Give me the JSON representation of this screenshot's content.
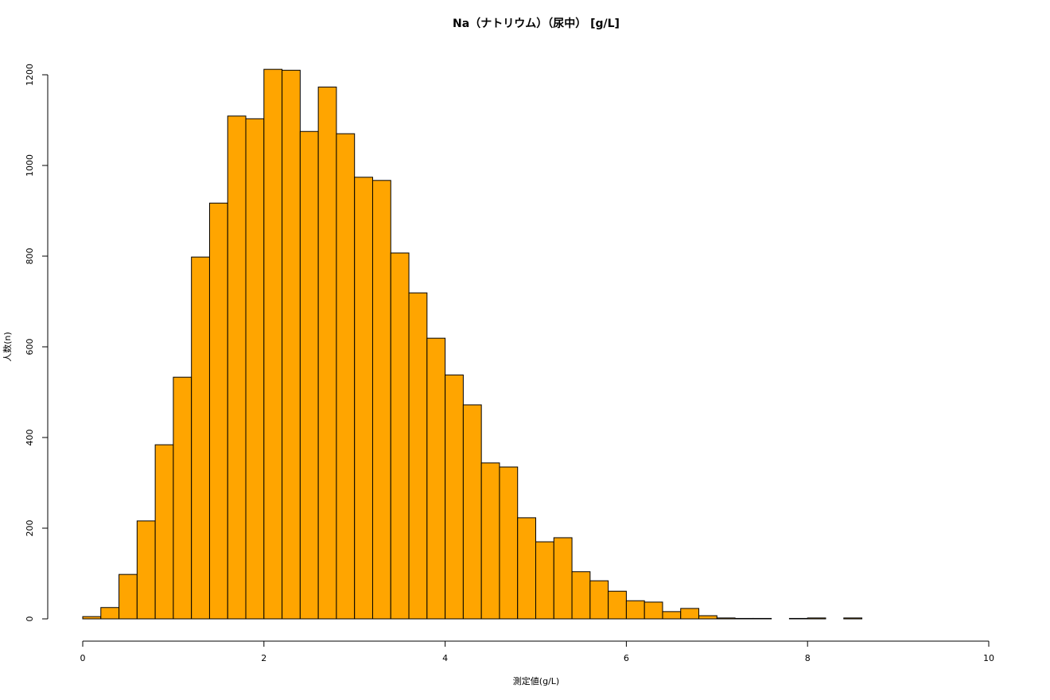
{
  "chart_data": {
    "type": "histogram",
    "title": "Na（ナトリウム）（尿中） [g/L]",
    "x_label": "測定値(g/L)",
    "y_label": "人数(n)",
    "bins": [
      0,
      0.2,
      0.4,
      0.6,
      0.8,
      1,
      1.2,
      1.4,
      1.6,
      1.8,
      2,
      2.2,
      2.4,
      2.6,
      2.8,
      3,
      3.2,
      3.4,
      3.6,
      3.8,
      4,
      4.2,
      4.4,
      4.6,
      4.8,
      5,
      5.2,
      5.4,
      5.6,
      5.8,
      6,
      6.2,
      6.4,
      6.6,
      6.8,
      7,
      7.2,
      7.4,
      7.6,
      7.8,
      8,
      8.2,
      8.4,
      8.6
    ],
    "values": [
      5,
      25,
      98,
      216,
      384,
      533,
      798,
      917,
      1109,
      1103,
      1212,
      1210,
      1075,
      1173,
      1070,
      974,
      967,
      807,
      719,
      619,
      538,
      472,
      344,
      335,
      223,
      170,
      179,
      104,
      84,
      61,
      40,
      37,
      16,
      23,
      7,
      2,
      1,
      1,
      0,
      1,
      2,
      0,
      2
    ],
    "color": "#ffa500",
    "xlim": [
      0,
      10
    ],
    "xticks": [
      0,
      2,
      4,
      6,
      8,
      10
    ],
    "ylim": [
      0,
      1200
    ],
    "yticks": [
      0,
      200,
      400,
      600,
      800,
      1000,
      1200
    ]
  }
}
